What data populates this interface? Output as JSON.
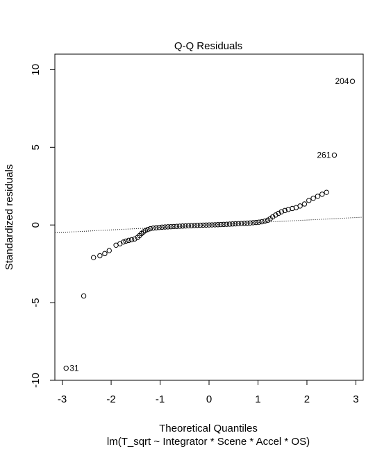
{
  "chart_data": {
    "type": "scatter",
    "title": "Q-Q Residuals",
    "xlabel": "Theoretical Quantiles",
    "ylabel": "Standardized residuals",
    "subtitle": "lm(T_sqrt ~ Integrator * Scene * Accel * OS)",
    "xlim": [
      -3.15,
      3.15
    ],
    "ylim": [
      -10.0,
      11.0
    ],
    "x_ticks": [
      -3,
      -2,
      -1,
      0,
      1,
      2,
      3
    ],
    "y_ticks": [
      -10,
      -5,
      0,
      5,
      10
    ],
    "reference_line": {
      "x": [
        -3.15,
        3.15
      ],
      "y": [
        -0.5,
        0.5
      ]
    },
    "points": [
      {
        "x": -2.92,
        "y": -9.22
      },
      {
        "x": -2.56,
        "y": -4.57
      },
      {
        "x": -2.36,
        "y": -2.1
      },
      {
        "x": -2.23,
        "y": -1.98
      },
      {
        "x": -2.13,
        "y": -1.84
      },
      {
        "x": -2.04,
        "y": -1.65
      },
      {
        "x": -1.9,
        "y": -1.3
      },
      {
        "x": -1.82,
        "y": -1.21
      },
      {
        "x": -1.75,
        "y": -1.1
      },
      {
        "x": -1.7,
        "y": -1.04
      },
      {
        "x": -1.64,
        "y": -0.99
      },
      {
        "x": -1.58,
        "y": -0.95
      },
      {
        "x": -1.52,
        "y": -0.9
      },
      {
        "x": -1.46,
        "y": -0.8
      },
      {
        "x": -1.42,
        "y": -0.68
      },
      {
        "x": -1.38,
        "y": -0.55
      },
      {
        "x": -1.34,
        "y": -0.45
      },
      {
        "x": -1.3,
        "y": -0.36
      },
      {
        "x": -1.25,
        "y": -0.29
      },
      {
        "x": -1.2,
        "y": -0.24
      },
      {
        "x": -1.14,
        "y": -0.2
      },
      {
        "x": -1.08,
        "y": -0.18
      },
      {
        "x": -1.02,
        "y": -0.16
      },
      {
        "x": -0.96,
        "y": -0.14
      },
      {
        "x": -0.9,
        "y": -0.13
      },
      {
        "x": -0.84,
        "y": -0.12
      },
      {
        "x": -0.78,
        "y": -0.11
      },
      {
        "x": -0.72,
        "y": -0.1
      },
      {
        "x": -0.66,
        "y": -0.09
      },
      {
        "x": -0.6,
        "y": -0.08
      },
      {
        "x": -0.54,
        "y": -0.07
      },
      {
        "x": -0.48,
        "y": -0.06
      },
      {
        "x": -0.42,
        "y": -0.05
      },
      {
        "x": -0.36,
        "y": -0.045
      },
      {
        "x": -0.3,
        "y": -0.035
      },
      {
        "x": -0.24,
        "y": -0.025
      },
      {
        "x": -0.18,
        "y": -0.018
      },
      {
        "x": -0.12,
        "y": -0.01
      },
      {
        "x": -0.06,
        "y": -0.005
      },
      {
        "x": 0.0,
        "y": 0.0
      },
      {
        "x": 0.06,
        "y": 0.006
      },
      {
        "x": 0.12,
        "y": 0.012
      },
      {
        "x": 0.18,
        "y": 0.02
      },
      {
        "x": 0.24,
        "y": 0.028
      },
      {
        "x": 0.3,
        "y": 0.036
      },
      {
        "x": 0.36,
        "y": 0.045
      },
      {
        "x": 0.42,
        "y": 0.055
      },
      {
        "x": 0.48,
        "y": 0.065
      },
      {
        "x": 0.54,
        "y": 0.075
      },
      {
        "x": 0.6,
        "y": 0.085
      },
      {
        "x": 0.66,
        "y": 0.095
      },
      {
        "x": 0.72,
        "y": 0.105
      },
      {
        "x": 0.78,
        "y": 0.115
      },
      {
        "x": 0.84,
        "y": 0.13
      },
      {
        "x": 0.9,
        "y": 0.145
      },
      {
        "x": 0.96,
        "y": 0.16
      },
      {
        "x": 1.02,
        "y": 0.18
      },
      {
        "x": 1.08,
        "y": 0.21
      },
      {
        "x": 1.14,
        "y": 0.25
      },
      {
        "x": 1.2,
        "y": 0.31
      },
      {
        "x": 1.25,
        "y": 0.4
      },
      {
        "x": 1.3,
        "y": 0.52
      },
      {
        "x": 1.36,
        "y": 0.64
      },
      {
        "x": 1.42,
        "y": 0.75
      },
      {
        "x": 1.48,
        "y": 0.85
      },
      {
        "x": 1.55,
        "y": 0.93
      },
      {
        "x": 1.62,
        "y": 1.0
      },
      {
        "x": 1.7,
        "y": 1.06
      },
      {
        "x": 1.78,
        "y": 1.12
      },
      {
        "x": 1.86,
        "y": 1.22
      },
      {
        "x": 1.95,
        "y": 1.35
      },
      {
        "x": 2.04,
        "y": 1.58
      },
      {
        "x": 2.13,
        "y": 1.72
      },
      {
        "x": 2.22,
        "y": 1.85
      },
      {
        "x": 2.31,
        "y": 1.98
      },
      {
        "x": 2.4,
        "y": 2.1
      },
      {
        "x": 2.56,
        "y": 4.5
      },
      {
        "x": 2.93,
        "y": 9.25
      }
    ],
    "labels": [
      {
        "x": 2.93,
        "y": 9.25,
        "text": "204",
        "anchor": "end",
        "dx": -5
      },
      {
        "x": 2.56,
        "y": 4.5,
        "text": "261",
        "anchor": "end",
        "dx": -5
      },
      {
        "x": -2.92,
        "y": -9.22,
        "text": "31",
        "anchor": "start",
        "dx": 5
      }
    ]
  }
}
